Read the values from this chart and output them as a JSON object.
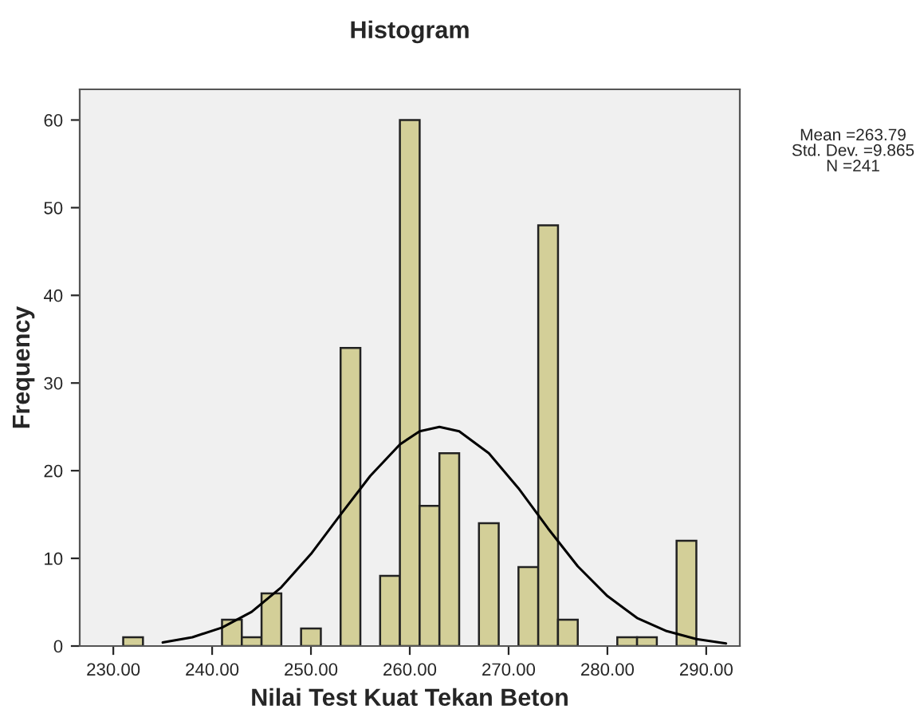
{
  "chart_data": {
    "type": "histogram",
    "title": "Histogram",
    "xlabel": "Nilai Test Kuat Tekan Beton",
    "ylabel": "Frequency",
    "series": [
      {
        "color": "#d3cf98",
        "bins": [
          231,
          233,
          235,
          237,
          239,
          241,
          243,
          245,
          247,
          249,
          251,
          253,
          255,
          257,
          259,
          261,
          263,
          265,
          267,
          269,
          271,
          273,
          275,
          277,
          279,
          281,
          283,
          285,
          287,
          289
        ],
        "values": [
          1,
          0,
          0,
          0,
          0,
          3,
          1,
          6,
          0,
          2,
          0,
          34,
          0,
          8,
          60,
          16,
          22,
          0,
          14,
          0,
          9,
          48,
          3,
          0,
          0,
          1,
          1,
          0,
          12
        ]
      },
      {
        "type": "line",
        "color": "#000000",
        "x": [
          235,
          238,
          241,
          244,
          247,
          250,
          253,
          256,
          259,
          261,
          263,
          265,
          268,
          271,
          274,
          277,
          280,
          283,
          286,
          289,
          292
        ],
        "values": [
          0.4,
          1.0,
          2.1,
          3.9,
          6.7,
          10.5,
          15.0,
          19.4,
          23.0,
          24.5,
          25.0,
          24.5,
          22.0,
          18.0,
          13.4,
          9.1,
          5.7,
          3.2,
          1.7,
          0.8,
          0.3
        ]
      }
    ],
    "xlim": [
      226.6,
      293.4
    ],
    "xticks": [
      {
        "value": 230,
        "label": "230.00"
      },
      {
        "value": 240,
        "label": "240.00"
      },
      {
        "value": 250,
        "label": "250.00"
      },
      {
        "value": 260,
        "label": "260.00"
      },
      {
        "value": 270,
        "label": "270.00"
      },
      {
        "value": 280,
        "label": "280.00"
      },
      {
        "value": 290,
        "label": "290.00"
      }
    ],
    "ylim": [
      0,
      63.5
    ],
    "yticks": [
      0,
      10,
      20,
      30,
      40,
      50,
      60
    ],
    "grid": false,
    "legend": false,
    "annotations": [
      "Mean =263.79\nStd. Dev. =9.865\nN =241"
    ]
  }
}
